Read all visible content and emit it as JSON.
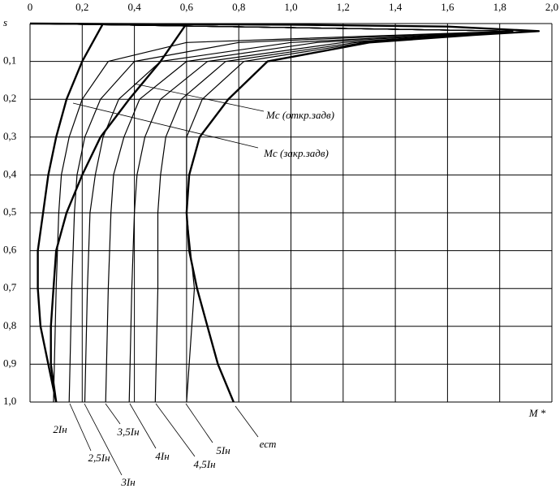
{
  "chart_data": {
    "type": "line",
    "xlabel": "M *",
    "xlim": [
      0,
      2.0
    ],
    "xticks": [
      0,
      {
        "value": 0.2,
        "label": "0,2"
      },
      {
        "value": 0.4,
        "label": "0,4"
      },
      {
        "value": 0.6,
        "label": "0,6"
      },
      {
        "value": 0.8,
        "label": "0,8"
      },
      {
        "value": 1.0,
        "label": "1,0"
      },
      {
        "value": 1.2,
        "label": "1,2"
      },
      {
        "value": 1.4,
        "label": "1,4"
      },
      {
        "value": 1.6,
        "label": "1,6"
      },
      {
        "value": 1.8,
        "label": "1,8"
      },
      {
        "value": 2.0,
        "label": "2,0"
      }
    ],
    "ylim": [
      0,
      1.0
    ],
    "y_direction": "down",
    "yticks": [
      {
        "value": 0,
        "label": "s"
      },
      {
        "value": 0.1,
        "label": "0,1"
      },
      {
        "value": 0.2,
        "label": "0,2"
      },
      {
        "value": 0.3,
        "label": "0,3"
      },
      {
        "value": 0.4,
        "label": "0,4"
      },
      {
        "value": 0.5,
        "label": "0,5"
      },
      {
        "value": 0.6,
        "label": "0,6"
      },
      {
        "value": 0.7,
        "label": "0,7"
      },
      {
        "value": 0.8,
        "label": "0,8"
      },
      {
        "value": 0.9,
        "label": "0,9"
      },
      {
        "value": 1.0,
        "label": "1,0"
      }
    ],
    "grid": true,
    "series": [
      {
        "name": "2Iн",
        "color": "#000000",
        "thick": false,
        "x": [
          0,
          1.85,
          0.6,
          0.3,
          0.2,
          0.15,
          0.12,
          0.11,
          0.1,
          0.09
        ],
        "values": [
          0,
          0.02,
          0.05,
          0.1,
          0.2,
          0.3,
          0.4,
          0.5,
          0.7,
          1.0
        ]
      },
      {
        "name": "2,5Iн",
        "color": "#000000",
        "thick": false,
        "x": [
          0,
          1.85,
          0.8,
          0.4,
          0.27,
          0.21,
          0.18,
          0.17,
          0.16,
          0.15
        ],
        "values": [
          0,
          0.02,
          0.05,
          0.1,
          0.2,
          0.3,
          0.4,
          0.5,
          0.7,
          1.0
        ]
      },
      {
        "name": "3Iн",
        "color": "#000000",
        "thick": false,
        "x": [
          0,
          1.85,
          1.0,
          0.5,
          0.34,
          0.28,
          0.25,
          0.23,
          0.22,
          0.21
        ],
        "values": [
          0,
          0.02,
          0.05,
          0.1,
          0.2,
          0.3,
          0.4,
          0.5,
          0.7,
          1.0
        ]
      },
      {
        "name": "3,5Iн",
        "color": "#000000",
        "thick": false,
        "x": [
          0,
          1.85,
          1.1,
          0.6,
          0.42,
          0.36,
          0.32,
          0.31,
          0.3,
          0.29
        ],
        "values": [
          0,
          0.02,
          0.05,
          0.1,
          0.2,
          0.3,
          0.4,
          0.5,
          0.7,
          1.0
        ]
      },
      {
        "name": "4Iн",
        "color": "#000000",
        "thick": false,
        "x": [
          0,
          1.85,
          1.2,
          0.68,
          0.5,
          0.44,
          0.41,
          0.4,
          0.39,
          0.38
        ],
        "values": [
          0,
          0.02,
          0.05,
          0.1,
          0.2,
          0.3,
          0.4,
          0.5,
          0.7,
          1.0
        ]
      },
      {
        "name": "4,5Iн",
        "color": "#000000",
        "thick": false,
        "x": [
          0,
          1.85,
          1.25,
          0.75,
          0.58,
          0.52,
          0.5,
          0.49,
          0.49,
          0.48
        ],
        "values": [
          0,
          0.02,
          0.05,
          0.1,
          0.2,
          0.3,
          0.4,
          0.5,
          0.7,
          1.0
        ]
      },
      {
        "name": "5Iн",
        "color": "#000000",
        "thick": false,
        "x": [
          0,
          1.85,
          1.28,
          0.82,
          0.66,
          0.6,
          0.6,
          0.6,
          0.63,
          0.6
        ],
        "values": [
          0,
          0.02,
          0.05,
          0.1,
          0.2,
          0.3,
          0.4,
          0.5,
          0.7,
          1.0
        ]
      },
      {
        "name": "ест",
        "color": "#000000",
        "thick": true,
        "x": [
          0,
          1.0,
          1.6,
          1.95,
          1.7,
          1.3,
          0.91,
          0.76,
          0.65,
          0.61,
          0.6,
          0.61,
          0.64,
          0.68,
          0.72,
          0.78
        ],
        "values": [
          0,
          0.003,
          0.008,
          0.02,
          0.03,
          0.05,
          0.1,
          0.2,
          0.3,
          0.4,
          0.5,
          0.6,
          0.7,
          0.8,
          0.9,
          1.0
        ]
      },
      {
        "name": "Mс (откр.задв)",
        "color": "#000000",
        "thick": true,
        "x": [
          0.28,
          0.2,
          0.14,
          0.1,
          0.07,
          0.05,
          0.03,
          0.03,
          0.04,
          0.07,
          0.1
        ],
        "values": [
          0,
          0.1,
          0.2,
          0.3,
          0.4,
          0.5,
          0.6,
          0.7,
          0.8,
          0.9,
          1.0
        ]
      },
      {
        "name": "Mс (закр.задв)",
        "color": "#000000",
        "thick": true,
        "x": [
          0.6,
          0.5,
          0.38,
          0.27,
          0.2,
          0.14,
          0.1,
          0.09,
          0.08,
          0.08,
          0.1
        ],
        "values": [
          0,
          0.1,
          0.2,
          0.3,
          0.4,
          0.5,
          0.6,
          0.7,
          0.8,
          0.9,
          1.0
        ]
      }
    ]
  }
}
